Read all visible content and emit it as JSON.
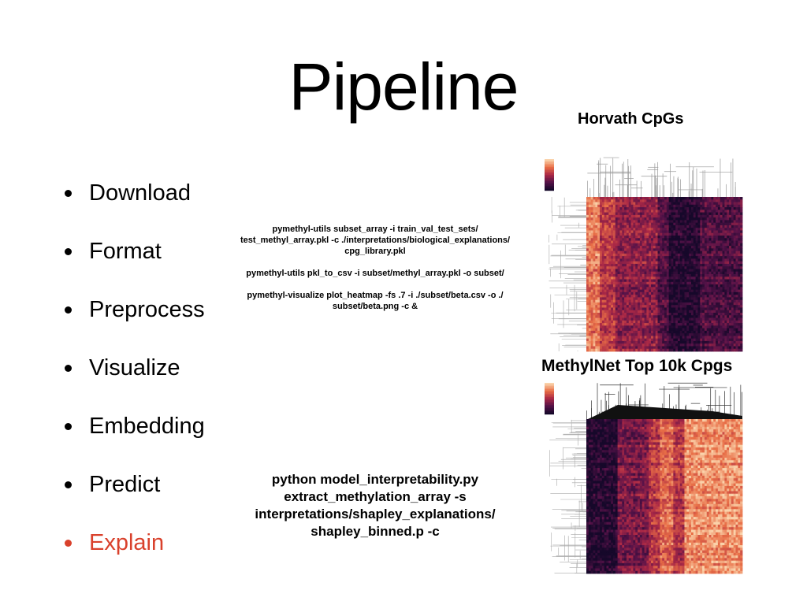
{
  "slide": {
    "title": "Pipeline",
    "bullets": [
      {
        "label": "Download",
        "active": false
      },
      {
        "label": "Format",
        "active": false
      },
      {
        "label": "Preprocess",
        "active": false
      },
      {
        "label": "Visualize",
        "active": false
      },
      {
        "label": "Embedding",
        "active": false
      },
      {
        "label": "Predict",
        "active": false
      },
      {
        "label": "Explain",
        "active": true
      }
    ],
    "active_color": "#d9412c",
    "commands_top": [
      "pymethyl-utils subset_array -i train_val_test_sets/",
      "test_methyl_array.pkl -c ./interpretations/biological_explanations/",
      "cpg_library.pkl",
      "pymethyl-utils pkl_to_csv -i subset/methyl_array.pkl -o subset/",
      "pymethyl-visualize plot_heatmap -fs .7 -i ./subset/beta.csv -o ./",
      "subset/beta.png -c &"
    ],
    "commands_bottom": [
      "python model_interpretability.py",
      "extract_methylation_array -s",
      "interpretations/shapley_explanations/",
      "shapley_binned.p  -c"
    ],
    "heatmaps": [
      {
        "title": "Horvath CpGs",
        "image": "clustered-heatmap-horvath-cpgs"
      },
      {
        "title": "MethylNet Top 10k Cpgs",
        "image": "clustered-heatmap-methylnet-top-10k-cpgs"
      }
    ]
  }
}
